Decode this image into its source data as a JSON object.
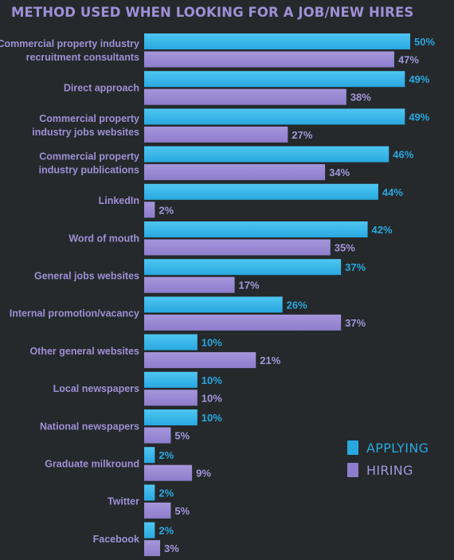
{
  "chart_data": {
    "type": "bar",
    "orientation": "horizontal",
    "title": "METHOD USED WHEN LOOKING FOR A JOB/NEW HIRES",
    "categories": [
      [
        "Commercial property industry",
        "recruitment consultants"
      ],
      [
        "Direct approach"
      ],
      [
        "Commercial property",
        "industry jobs websites"
      ],
      [
        "Commercial property",
        "industry publications"
      ],
      [
        "LinkedIn"
      ],
      [
        "Word of mouth"
      ],
      [
        "General jobs websites"
      ],
      [
        "Internal promotion/vacancy"
      ],
      [
        "Other general websites"
      ],
      [
        "Local newspapers"
      ],
      [
        "National newspapers"
      ],
      [
        "Graduate milkround"
      ],
      [
        "Twitter"
      ],
      [
        "Facebook"
      ]
    ],
    "series": [
      {
        "name": "APPLYING",
        "color": "#29a8e0",
        "gradient_top": "#4ec6f2",
        "values": [
          50,
          49,
          49,
          46,
          44,
          42,
          37,
          26,
          10,
          10,
          10,
          2,
          2,
          2
        ]
      },
      {
        "name": "HIRING",
        "color": "#8d7dcc",
        "gradient_top": "#a596dc",
        "values": [
          47,
          38,
          27,
          34,
          2,
          35,
          17,
          37,
          21,
          10,
          5,
          9,
          5,
          3
        ]
      }
    ],
    "value_suffix": "%",
    "xlim": [
      0,
      50
    ],
    "grid": false,
    "legend_position": "bottom-right"
  }
}
